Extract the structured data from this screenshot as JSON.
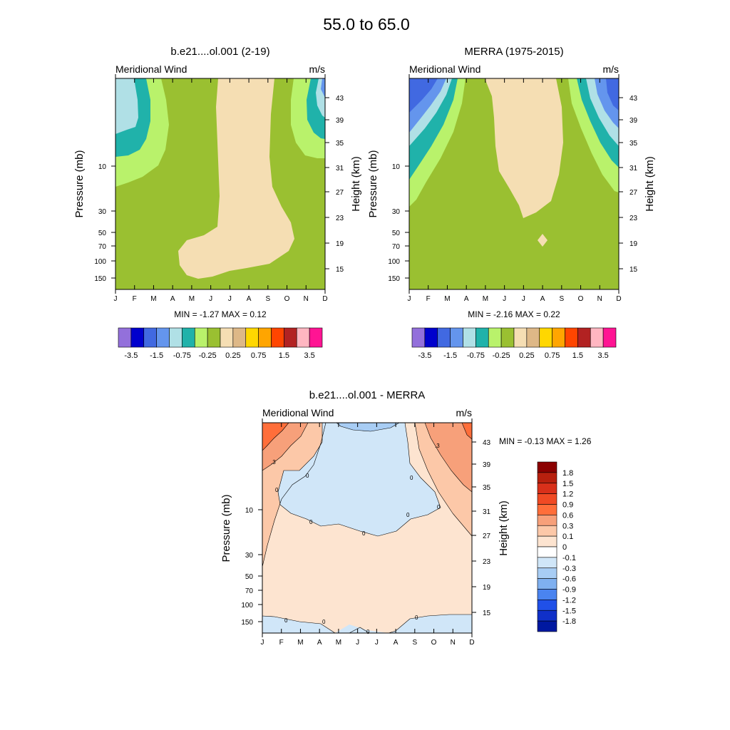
{
  "figure": {
    "title": "55.0 to  65.0"
  },
  "chart_data": [
    {
      "type": "contour",
      "title": "b.e21....ol.001 (2-19)",
      "left_label": "Meridional Wind",
      "right_label": "m/s",
      "xlabel": "",
      "ylabel": "Pressure (mb)",
      "ylabel_right": "Height (km)",
      "x_ticks": [
        "J",
        "F",
        "M",
        "A",
        "M",
        "J",
        "J",
        "A",
        "S",
        "O",
        "N",
        "D"
      ],
      "pressure_ticks": [
        "10",
        "30",
        "50",
        "70",
        "100",
        "150"
      ],
      "height_ticks": [
        "43",
        "39",
        "35",
        "31",
        "27",
        "23",
        "19",
        "15"
      ],
      "stats": "MIN =  -1.27  MAX =   0.12",
      "colorbar": {
        "orientation": "horizontal",
        "levels": [
          -3.5,
          -2.5,
          -1.5,
          -1,
          -0.75,
          -0.5,
          -0.25,
          0,
          0.25,
          0.5,
          0.75,
          1,
          1.5,
          2.5,
          3.5
        ],
        "labels": [
          "-3.5",
          "-1.5",
          "-0.75",
          "-0.25",
          "0.25",
          "0.75",
          "1.5",
          "3.5"
        ],
        "colors": [
          "#9370db",
          "#0000cd",
          "#4169e1",
          "#6495ed",
          "#b0e0e6",
          "#20b2aa",
          "#b9f26b",
          "#9ac031",
          "#f5deb3",
          "#deb887",
          "#ffd700",
          "#ffa500",
          "#ff4500",
          "#b22222",
          "#ffb6c1",
          "#ff1493"
        ]
      }
    },
    {
      "type": "contour",
      "title": "MERRA (1975-2015)",
      "left_label": "Meridional Wind",
      "right_label": "m/s",
      "xlabel": "",
      "ylabel": "Pressure (mb)",
      "ylabel_right": "Height (km)",
      "x_ticks": [
        "J",
        "F",
        "M",
        "A",
        "M",
        "J",
        "J",
        "A",
        "S",
        "O",
        "N",
        "D"
      ],
      "pressure_ticks": [
        "10",
        "30",
        "50",
        "70",
        "100",
        "150"
      ],
      "height_ticks": [
        "43",
        "39",
        "35",
        "31",
        "27",
        "23",
        "19",
        "15"
      ],
      "stats": "MIN =  -2.16  MAX =   0.22",
      "colorbar": {
        "orientation": "horizontal",
        "levels": [
          -3.5,
          -2.5,
          -1.5,
          -1,
          -0.75,
          -0.5,
          -0.25,
          0,
          0.25,
          0.5,
          0.75,
          1,
          1.5,
          2.5,
          3.5
        ],
        "labels": [
          "-3.5",
          "-1.5",
          "-0.75",
          "-0.25",
          "0.25",
          "0.75",
          "1.5",
          "3.5"
        ],
        "colors": [
          "#9370db",
          "#0000cd",
          "#4169e1",
          "#6495ed",
          "#b0e0e6",
          "#20b2aa",
          "#b9f26b",
          "#9ac031",
          "#f5deb3",
          "#deb887",
          "#ffd700",
          "#ffa500",
          "#ff4500",
          "#b22222",
          "#ffb6c1",
          "#ff1493"
        ]
      }
    },
    {
      "type": "contour",
      "title": "b.e21....ol.001 - MERRA",
      "left_label": "Meridional Wind",
      "right_label": "m/s",
      "xlabel": "",
      "ylabel": "Pressure (mb)",
      "ylabel_right": "Height (km)",
      "x_ticks": [
        "J",
        "F",
        "M",
        "A",
        "M",
        "J",
        "J",
        "A",
        "S",
        "O",
        "N",
        "D"
      ],
      "pressure_ticks": [
        "10",
        "30",
        "50",
        "70",
        "100",
        "150"
      ],
      "height_ticks": [
        "43",
        "39",
        "35",
        "31",
        "27",
        "23",
        "19",
        "15"
      ],
      "stats": "MIN =  -0.13  MAX =   1.26",
      "contour_line_labels": [
        ".3",
        "0",
        "0",
        ".3",
        "0",
        "0",
        "0",
        "0",
        "0",
        "0",
        "0",
        "0",
        "0"
      ],
      "colorbar": {
        "orientation": "vertical",
        "labels": [
          "1.8",
          "1.5",
          "1.2",
          "0.9",
          "0.6",
          "0.3",
          "0.1",
          "0",
          "-0.1",
          "-0.3",
          "-0.6",
          "-0.9",
          "-1.2",
          "-1.5",
          "-1.8"
        ],
        "colors": [
          "#8b0000",
          "#b8200e",
          "#d9301a",
          "#f04a24",
          "#ff6e3a",
          "#f7a07a",
          "#fcc8a8",
          "#fde4d0",
          "#ffffff",
          "#d0e6f8",
          "#a8cdf4",
          "#7fb0f0",
          "#4a84f0",
          "#2050e8",
          "#1030c8",
          "#0018a0"
        ]
      }
    }
  ]
}
